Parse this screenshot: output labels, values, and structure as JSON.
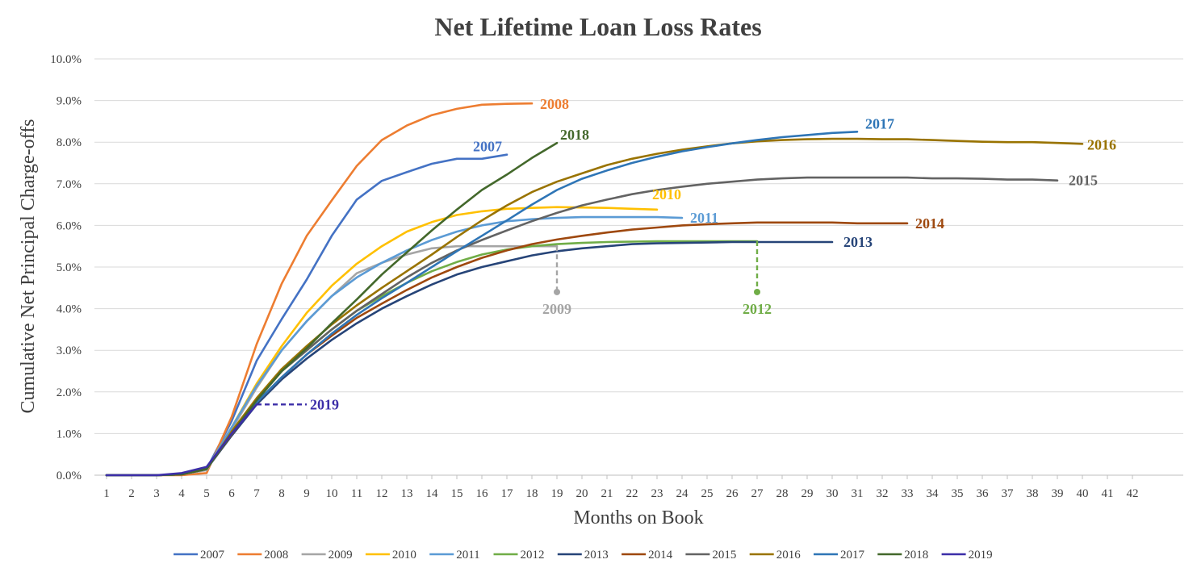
{
  "chart_data": {
    "type": "line",
    "title": "Net Lifetime Loan Loss Rates",
    "xlabel": "Months on Book",
    "ylabel": "Cumulative Net Principal Charge-offs",
    "xlim": [
      1,
      42
    ],
    "ylim": [
      0,
      10
    ],
    "x_ticks": [
      "1",
      "2",
      "3",
      "4",
      "5",
      "6",
      "7",
      "8",
      "9",
      "10",
      "11",
      "12",
      "13",
      "14",
      "15",
      "16",
      "17",
      "18",
      "19",
      "20",
      "21",
      "22",
      "23",
      "24",
      "25",
      "26",
      "27",
      "28",
      "29",
      "30",
      "31",
      "32",
      "33",
      "34",
      "35",
      "36",
      "37",
      "38",
      "39",
      "40",
      "41",
      "42"
    ],
    "y_ticks": [
      "0.0%",
      "1.0%",
      "2.0%",
      "3.0%",
      "4.0%",
      "5.0%",
      "6.0%",
      "7.0%",
      "8.0%",
      "9.0%",
      "10.0%"
    ],
    "grid": true,
    "legend_position": "bottom",
    "series": [
      {
        "name": "2007",
        "color": "#4472C4",
        "values": [
          0,
          0,
          0,
          0.02,
          0.15,
          1.3,
          2.75,
          3.75,
          4.7,
          5.75,
          6.62,
          7.07,
          7.28,
          7.48,
          7.6,
          7.6,
          7.7
        ]
      },
      {
        "name": "2008",
        "color": "#ED7D31",
        "values": [
          0,
          0,
          0,
          0,
          0.05,
          1.4,
          3.15,
          4.6,
          5.75,
          6.6,
          7.43,
          8.05,
          8.4,
          8.65,
          8.8,
          8.9,
          8.92,
          8.93
        ]
      },
      {
        "name": "2009",
        "color": "#A5A5A5",
        "values": [
          0,
          0,
          0,
          0.02,
          0.12,
          1.1,
          2.1,
          3.0,
          3.7,
          4.3,
          4.85,
          5.1,
          5.3,
          5.45,
          5.5,
          5.5,
          5.5,
          5.5,
          5.5
        ]
      },
      {
        "name": "2010",
        "color": "#FFC000",
        "values": [
          0,
          0,
          0,
          0.02,
          0.15,
          1.15,
          2.2,
          3.1,
          3.9,
          4.55,
          5.08,
          5.5,
          5.85,
          6.08,
          6.25,
          6.34,
          6.4,
          6.42,
          6.44,
          6.43,
          6.42,
          6.4,
          6.38
        ]
      },
      {
        "name": "2011",
        "color": "#5B9BD5",
        "values": [
          0,
          0,
          0,
          0.02,
          0.15,
          1.15,
          2.15,
          3.0,
          3.7,
          4.3,
          4.75,
          5.1,
          5.4,
          5.65,
          5.85,
          6.0,
          6.1,
          6.15,
          6.18,
          6.2,
          6.2,
          6.2,
          6.2,
          6.18
        ]
      },
      {
        "name": "2012",
        "color": "#70AD47",
        "values": [
          0,
          0,
          0,
          0.02,
          0.15,
          1.0,
          1.8,
          2.5,
          3.0,
          3.5,
          3.95,
          4.3,
          4.62,
          4.9,
          5.12,
          5.3,
          5.42,
          5.5,
          5.55,
          5.58,
          5.6,
          5.61,
          5.62,
          5.62,
          5.62,
          5.62,
          5.62
        ]
      },
      {
        "name": "2013",
        "color": "#264478",
        "values": [
          0,
          0,
          0,
          0.02,
          0.15,
          0.95,
          1.7,
          2.3,
          2.8,
          3.25,
          3.65,
          4.0,
          4.3,
          4.58,
          4.82,
          5.0,
          5.14,
          5.28,
          5.38,
          5.45,
          5.5,
          5.55,
          5.57,
          5.58,
          5.59,
          5.6,
          5.6,
          5.6,
          5.6,
          5.6
        ]
      },
      {
        "name": "2014",
        "color": "#9E480E",
        "values": [
          0,
          0,
          0,
          0.02,
          0.15,
          0.98,
          1.75,
          2.35,
          2.9,
          3.35,
          3.78,
          4.12,
          4.45,
          4.75,
          5.0,
          5.22,
          5.4,
          5.55,
          5.66,
          5.75,
          5.83,
          5.9,
          5.95,
          6.0,
          6.03,
          6.05,
          6.07,
          6.07,
          6.07,
          6.07,
          6.05,
          6.05,
          6.05
        ]
      },
      {
        "name": "2015",
        "color": "#636363",
        "values": [
          0,
          0,
          0,
          0.02,
          0.15,
          1.0,
          1.8,
          2.5,
          3.0,
          3.5,
          3.95,
          4.35,
          4.75,
          5.1,
          5.4,
          5.65,
          5.88,
          6.1,
          6.3,
          6.48,
          6.62,
          6.75,
          6.85,
          6.93,
          7.0,
          7.05,
          7.1,
          7.13,
          7.15,
          7.15,
          7.15,
          7.15,
          7.15,
          7.13,
          7.13,
          7.12,
          7.1,
          7.1,
          7.08
        ]
      },
      {
        "name": "2016",
        "color": "#997300",
        "values": [
          0,
          0,
          0,
          0.02,
          0.15,
          1.05,
          1.85,
          2.55,
          3.1,
          3.62,
          4.08,
          4.5,
          4.9,
          5.3,
          5.72,
          6.12,
          6.48,
          6.8,
          7.05,
          7.25,
          7.45,
          7.6,
          7.72,
          7.82,
          7.9,
          7.97,
          8.02,
          8.05,
          8.07,
          8.08,
          8.08,
          8.07,
          8.07,
          8.05,
          8.03,
          8.01,
          8.0,
          8.0,
          7.98,
          7.96
        ]
      },
      {
        "name": "2017",
        "color": "#2E75B6",
        "values": [
          0,
          0,
          0,
          0.02,
          0.15,
          1.0,
          1.75,
          2.35,
          2.9,
          3.4,
          3.85,
          4.25,
          4.62,
          5.0,
          5.38,
          5.75,
          6.12,
          6.5,
          6.85,
          7.12,
          7.32,
          7.5,
          7.65,
          7.78,
          7.88,
          7.97,
          8.05,
          8.12,
          8.17,
          8.22,
          8.25
        ]
      },
      {
        "name": "2018",
        "color": "#43682B",
        "values": [
          0,
          0,
          0,
          0.02,
          0.15,
          1.0,
          1.8,
          2.5,
          3.05,
          3.65,
          4.22,
          4.82,
          5.35,
          5.88,
          6.38,
          6.85,
          7.22,
          7.62,
          7.98
        ]
      },
      {
        "name": "2019",
        "color": "#3C2EA8",
        "values": [
          0,
          0,
          0,
          0.05,
          0.2,
          1.0,
          1.7
        ]
      }
    ],
    "annotations": [
      {
        "text": "2007",
        "series": "2007",
        "at_x": 17
      },
      {
        "text": "2008",
        "series": "2008",
        "at_x": 18
      },
      {
        "text": "2009",
        "series": "2009",
        "at_x": 19
      },
      {
        "text": "2010",
        "series": "2010",
        "at_x": 23
      },
      {
        "text": "2011",
        "series": "2011",
        "at_x": 24
      },
      {
        "text": "2012",
        "series": "2012",
        "at_x": 27
      },
      {
        "text": "2013",
        "series": "2013",
        "at_x": 30
      },
      {
        "text": "2014",
        "series": "2014",
        "at_x": 33
      },
      {
        "text": "2015",
        "series": "2015",
        "at_x": 39
      },
      {
        "text": "2016",
        "series": "2016",
        "at_x": 40
      },
      {
        "text": "2017",
        "series": "2017",
        "at_x": 31
      },
      {
        "text": "2018",
        "series": "2018",
        "at_x": 19
      },
      {
        "text": "2019",
        "series": "2019",
        "at_x": 7
      }
    ]
  }
}
